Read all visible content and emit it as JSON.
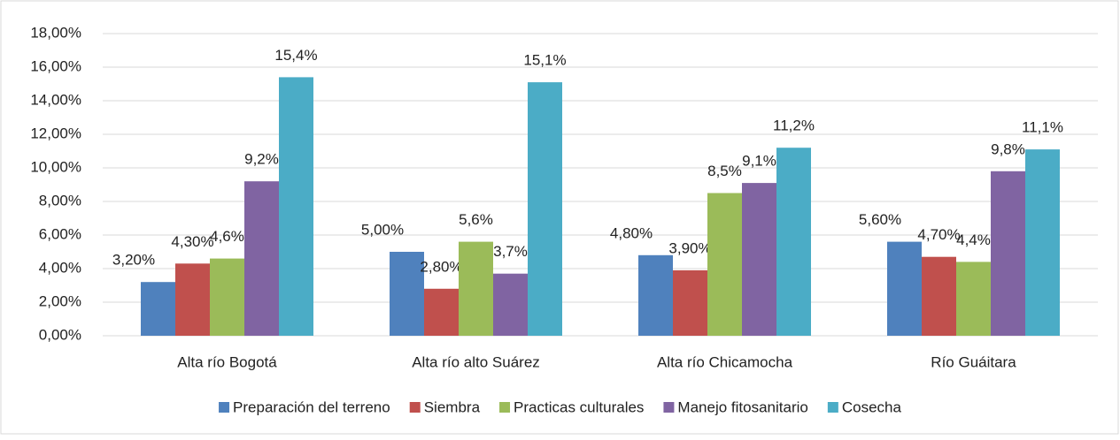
{
  "chart_data": {
    "type": "bar",
    "categories": [
      "Alta río Bogotá",
      "Alta río alto Suárez",
      "Alta río Chicamocha",
      "Río Guáitara"
    ],
    "series": [
      {
        "name": "Preparación del terreno",
        "color": "#4f81bd",
        "values": [
          3.2,
          5.0,
          4.8,
          5.6
        ],
        "value_labels": [
          "3,20%",
          "5,00%",
          "4,80%",
          "5,60%"
        ]
      },
      {
        "name": "Siembra",
        "color": "#c0504d",
        "values": [
          4.3,
          2.8,
          3.9,
          4.7
        ],
        "value_labels": [
          "4,30%",
          "2,80%",
          "3,90%",
          "4,70%"
        ]
      },
      {
        "name": "Practicas culturales",
        "color": "#9bbb59",
        "values": [
          4.6,
          5.6,
          8.5,
          4.4
        ],
        "value_labels": [
          "4,6%",
          "5,6%",
          "8,5%",
          "4,4%"
        ]
      },
      {
        "name": "Manejo fitosanitario",
        "color": "#8064a2",
        "values": [
          9.2,
          3.7,
          9.1,
          9.8
        ],
        "value_labels": [
          "9,2%",
          "3,7%",
          "9,1%",
          "9,8%"
        ]
      },
      {
        "name": "Cosecha",
        "color": "#4bacc6",
        "values": [
          15.4,
          15.1,
          11.2,
          11.1
        ],
        "value_labels": [
          "15,4%",
          "15,1%",
          "11,2%",
          "11,1%"
        ]
      }
    ],
    "ylim": [
      0,
      18
    ],
    "yticks": [
      {
        "value": 0,
        "label": "0,00%"
      },
      {
        "value": 2,
        "label": "2,00%"
      },
      {
        "value": 4,
        "label": "4,00%"
      },
      {
        "value": 6,
        "label": "6,00%"
      },
      {
        "value": 8,
        "label": "8,00%"
      },
      {
        "value": 10,
        "label": "10,00%"
      },
      {
        "value": 12,
        "label": "12,00%"
      },
      {
        "value": 14,
        "label": "14,00%"
      },
      {
        "value": 16,
        "label": "16,00%"
      },
      {
        "value": 18,
        "label": "18,00%"
      }
    ],
    "grid": true,
    "legend": "bottom"
  }
}
